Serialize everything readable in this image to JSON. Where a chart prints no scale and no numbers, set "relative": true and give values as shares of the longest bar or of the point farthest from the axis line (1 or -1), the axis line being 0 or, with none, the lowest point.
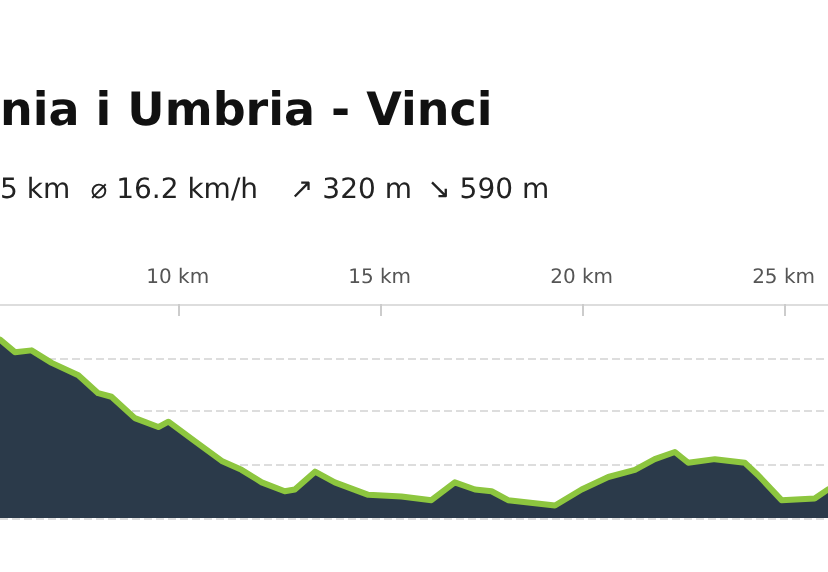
{
  "chart_data": {
    "type": "area",
    "title": "nia i Umbria - Vinci",
    "annotations": [
      "5 km",
      "⌀ 16.2 km/h",
      "↗ 320 m",
      "↘ 590 m"
    ],
    "relative": true,
    "x": [
      5.6,
      5.97,
      6.38,
      6.88,
      7.54,
      8.03,
      8.36,
      8.94,
      9.52,
      9.77,
      10.43,
      11.09,
      11.58,
      12.08,
      12.65,
      12.9,
      13.4,
      13.89,
      14.72,
      15.54,
      16.28,
      16.86,
      17.36,
      17.77,
      18.18,
      19.34,
      20.0,
      20.66,
      21.32,
      21.81,
      22.31,
      22.64,
      23.3,
      24.04,
      24.37,
      24.95,
      25.77,
      26.1
    ],
    "series": [
      {
        "color": "#8dc63f",
        "values": [
          1.0,
          0.93,
          0.94,
          0.87,
          0.8,
          0.7,
          0.68,
          0.56,
          0.51,
          0.54,
          0.43,
          0.32,
          0.27,
          0.2,
          0.15,
          0.16,
          0.26,
          0.2,
          0.13,
          0.12,
          0.1,
          0.2,
          0.16,
          0.15,
          0.1,
          0.07,
          0.16,
          0.23,
          0.27,
          0.33,
          0.37,
          0.31,
          0.33,
          0.31,
          0.24,
          0.1,
          0.11,
          0.16
        ]
      }
    ],
    "xlim": [
      5.6,
      26.1
    ],
    "xticks": [
      {
        "value": 10,
        "label": "10 km"
      },
      {
        "value": 15,
        "label": "15 km"
      },
      {
        "value": 20,
        "label": "20 km"
      },
      {
        "value": 25,
        "label": "25 km"
      }
    ],
    "grid": "y",
    "marker": "none",
    "line_style": "solid"
  }
}
